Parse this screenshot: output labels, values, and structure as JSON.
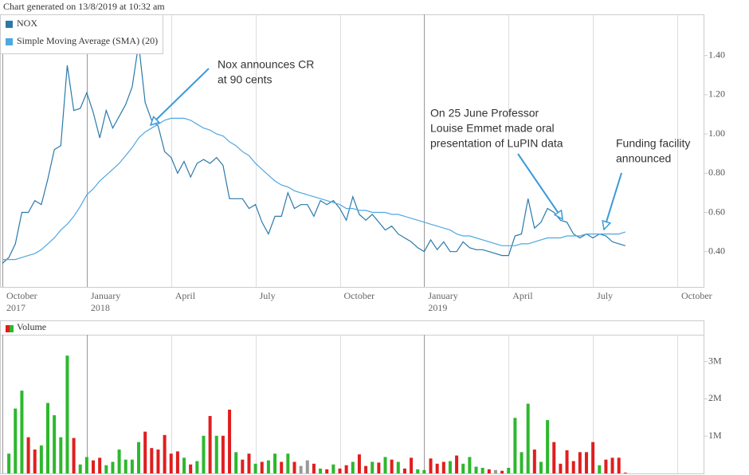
{
  "chart_data": [
    {
      "type": "line",
      "title": "Chart generated on 13/8/2019 at 10:32 am",
      "categories": [
        "October 2017",
        null,
        null,
        null,
        null,
        null,
        null,
        null,
        null,
        null,
        null,
        null,
        null,
        "January 2018",
        null,
        null,
        null,
        null,
        null,
        null,
        null,
        null,
        null,
        null,
        null,
        null,
        "April",
        null,
        null,
        null,
        null,
        null,
        null,
        null,
        null,
        null,
        null,
        null,
        null,
        "July",
        null,
        null,
        null,
        null,
        null,
        null,
        null,
        null,
        null,
        null,
        null,
        null,
        "October",
        null,
        null,
        null,
        null,
        null,
        null,
        null,
        null,
        null,
        null,
        null,
        null,
        "January 2019",
        null,
        null,
        null,
        null,
        null,
        null,
        null,
        null,
        null,
        null,
        null,
        null,
        "April",
        null,
        null,
        null,
        null,
        null,
        null,
        null,
        null,
        null,
        null,
        null,
        null,
        "July",
        null,
        null,
        null,
        null,
        null,
        null,
        null,
        null,
        null,
        null,
        null,
        null,
        "October"
      ],
      "series": [
        {
          "name": "NOX",
          "color": "#2b79aa",
          "values": [
            0.34,
            0.37,
            0.44,
            0.6,
            0.6,
            0.66,
            0.64,
            0.77,
            0.92,
            0.94,
            1.35,
            1.12,
            1.13,
            1.21,
            1.11,
            0.98,
            1.12,
            1.03,
            1.09,
            1.15,
            1.24,
            1.46,
            1.16,
            1.07,
            1.04,
            0.91,
            0.88,
            0.8,
            0.86,
            0.78,
            0.85,
            0.87,
            0.85,
            0.88,
            0.84,
            0.67,
            0.67,
            0.67,
            0.62,
            0.64,
            0.55,
            0.49,
            0.58,
            0.58,
            0.7,
            0.62,
            0.64,
            0.64,
            0.58,
            0.66,
            0.64,
            0.66,
            0.62,
            0.56,
            0.68,
            0.59,
            0.56,
            0.59,
            0.55,
            0.51,
            0.53,
            0.49,
            0.47,
            0.45,
            0.42,
            0.4,
            0.46,
            0.41,
            0.45,
            0.4,
            0.4,
            0.45,
            0.42,
            0.41,
            0.41,
            0.4,
            0.39,
            0.38,
            0.38,
            0.48,
            0.49,
            0.67,
            0.52,
            0.55,
            0.62,
            0.6,
            0.56,
            0.55,
            0.49,
            0.47,
            0.49,
            0.47,
            0.49,
            0.48,
            0.45,
            0.44,
            0.43,
            null,
            null,
            null,
            null,
            null,
            null,
            null,
            null
          ]
        },
        {
          "name": "Simple Moving Average (SMA) (20)",
          "color": "#4fa8e0",
          "values": [
            0.36,
            0.36,
            0.36,
            0.37,
            0.38,
            0.39,
            0.41,
            0.44,
            0.47,
            0.51,
            0.54,
            0.58,
            0.63,
            0.69,
            0.72,
            0.76,
            0.79,
            0.82,
            0.85,
            0.89,
            0.93,
            0.98,
            1.01,
            1.03,
            1.05,
            1.07,
            1.08,
            1.08,
            1.08,
            1.07,
            1.05,
            1.03,
            1.02,
            1.0,
            0.99,
            0.96,
            0.94,
            0.91,
            0.89,
            0.85,
            0.82,
            0.79,
            0.76,
            0.74,
            0.73,
            0.71,
            0.7,
            0.69,
            0.68,
            0.67,
            0.66,
            0.65,
            0.64,
            0.62,
            0.62,
            0.61,
            0.61,
            0.6,
            0.6,
            0.6,
            0.59,
            0.59,
            0.58,
            0.57,
            0.56,
            0.55,
            0.54,
            0.53,
            0.52,
            0.51,
            0.49,
            0.48,
            0.48,
            0.47,
            0.46,
            0.45,
            0.44,
            0.43,
            0.43,
            0.43,
            0.44,
            0.44,
            0.45,
            0.46,
            0.47,
            0.47,
            0.47,
            0.48,
            0.48,
            0.48,
            0.49,
            0.49,
            0.49,
            0.49,
            0.49,
            0.49,
            0.5,
            null,
            null,
            null,
            null,
            null,
            null,
            null,
            null
          ]
        }
      ],
      "ylim": [
        0.22,
        1.61
      ],
      "yticks": [
        {
          "value": 0.4,
          "label": "0.40"
        },
        {
          "value": 0.6,
          "label": "0.60"
        },
        {
          "value": 0.8,
          "label": "0.80"
        },
        {
          "value": 1.0,
          "label": "1.00"
        },
        {
          "value": 1.2,
          "label": "1.20"
        },
        {
          "value": 1.4,
          "label": "1.40"
        }
      ],
      "annotations": [
        {
          "lines": [
            "Nox announces CR",
            "at 90 cents"
          ]
        },
        {
          "lines": [
            "On 25 June Professor",
            "Louise Emmet made oral",
            "presentation of LuPIN data"
          ]
        },
        {
          "lines": [
            "Funding facility",
            "announced"
          ]
        }
      ]
    },
    {
      "type": "bar",
      "title": "Volume",
      "values": [
        null,
        530000,
        1740000,
        2220000,
        970000,
        640000,
        750000,
        1890000,
        1560000,
        970000,
        3160000,
        950000,
        240000,
        440000,
        350000,
        420000,
        220000,
        310000,
        640000,
        370000,
        370000,
        840000,
        1120000,
        680000,
        640000,
        1030000,
        530000,
        590000,
        420000,
        240000,
        330000,
        1010000,
        1540000,
        1010000,
        1010000,
        1710000,
        570000,
        370000,
        530000,
        260000,
        310000,
        350000,
        530000,
        310000,
        530000,
        310000,
        200000,
        350000,
        260000,
        130000,
        110000,
        240000,
        130000,
        220000,
        310000,
        510000,
        200000,
        310000,
        290000,
        440000,
        370000,
        310000,
        130000,
        420000,
        110000,
        90000,
        400000,
        260000,
        310000,
        330000,
        480000,
        260000,
        440000,
        180000,
        150000,
        110000,
        90000,
        70000,
        150000,
        1490000,
        570000,
        1870000,
        640000,
        310000,
        1430000,
        840000,
        260000,
        620000,
        330000,
        570000,
        570000,
        840000,
        220000,
        370000,
        420000,
        420000,
        20000,
        null,
        null,
        null,
        null,
        null,
        null,
        null,
        null
      ],
      "colors": [
        null,
        "#2db82d",
        "#2db82d",
        "#2db82d",
        "#e01e1e",
        "#e01e1e",
        "#2db82d",
        "#2db82d",
        "#2db82d",
        "#2db82d",
        "#2db82d",
        "#e01e1e",
        "#2db82d",
        "#2db82d",
        "#e01e1e",
        "#e01e1e",
        "#2db82d",
        "#2db82d",
        "#2db82d",
        "#2db82d",
        "#2db82d",
        "#2db82d",
        "#e01e1e",
        "#e01e1e",
        "#e01e1e",
        "#e01e1e",
        "#e01e1e",
        "#e01e1e",
        "#2db82d",
        "#e01e1e",
        "#2db82d",
        "#2db82d",
        "#e01e1e",
        "#2db82d",
        "#e01e1e",
        "#e01e1e",
        "#2db82d",
        "#e01e1e",
        "#e01e1e",
        "#2db82d",
        "#e01e1e",
        "#2db82d",
        "#2db82d",
        "#e01e1e",
        "#2db82d",
        "#e01e1e",
        "#999999",
        "#999999",
        "#e01e1e",
        "#2db82d",
        "#e01e1e",
        "#2db82d",
        "#e01e1e",
        "#e01e1e",
        "#2db82d",
        "#e01e1e",
        "#e01e1e",
        "#2db82d",
        "#e01e1e",
        "#2db82d",
        "#e01e1e",
        "#2db82d",
        "#e01e1e",
        "#e01e1e",
        "#2db82d",
        "#2db82d",
        "#e01e1e",
        "#e01e1e",
        "#e01e1e",
        "#2db82d",
        "#e01e1e",
        "#2db82d",
        "#2db82d",
        "#2db82d",
        "#2db82d",
        "#e01e1e",
        "#999999",
        "#e01e1e",
        "#2db82d",
        "#2db82d",
        "#2db82d",
        "#2db82d",
        "#e01e1e",
        "#2db82d",
        "#2db82d",
        "#e01e1e",
        "#e01e1e",
        "#e01e1e",
        "#e01e1e",
        "#e01e1e",
        "#e01e1e",
        "#e01e1e",
        "#2db82d",
        "#e01e1e",
        "#e01e1e",
        "#e01e1e",
        "#e01e1e",
        null,
        null,
        null,
        null,
        null,
        null,
        null,
        null
      ],
      "ylim": [
        0,
        3720000
      ],
      "yticks": [
        {
          "value": 1000000,
          "label": "1M"
        },
        {
          "value": 2000000,
          "label": "2M"
        },
        {
          "value": 3000000,
          "label": "3M"
        }
      ]
    }
  ]
}
